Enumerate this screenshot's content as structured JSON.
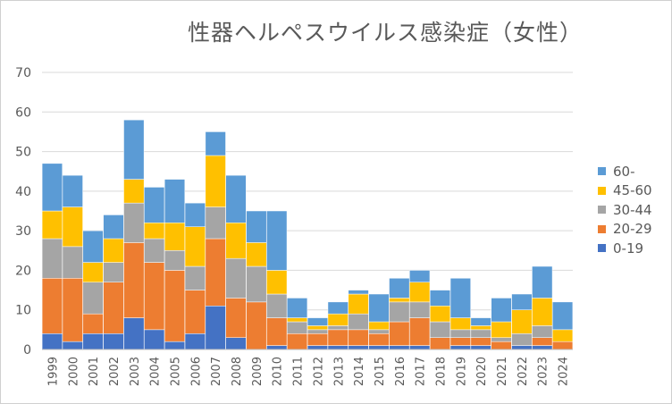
{
  "chart_data": {
    "type": "bar",
    "stacked": true,
    "title": "性器ヘルペスウイルス感染症（女性）",
    "xlabel": "",
    "ylabel": "",
    "ylim": [
      0,
      70
    ],
    "yticks": [
      0,
      10,
      20,
      30,
      40,
      50,
      60,
      70
    ],
    "grid": true,
    "legend_position": "right",
    "categories": [
      "1999",
      "2000",
      "2001",
      "2002",
      "2003",
      "2004",
      "2005",
      "2006",
      "2007",
      "2008",
      "2009",
      "2010",
      "2011",
      "2012",
      "2013",
      "2014",
      "2015",
      "2016",
      "2017",
      "2018",
      "2019",
      "2020",
      "2021",
      "2022",
      "2023",
      "2024"
    ],
    "series": [
      {
        "name": "0-19",
        "color": "#4472c4",
        "values": [
          4,
          2,
          4,
          4,
          8,
          5,
          2,
          4,
          11,
          3,
          0,
          1,
          0,
          1,
          1,
          1,
          1,
          1,
          1,
          0,
          1,
          1,
          0,
          1,
          1,
          0
        ]
      },
      {
        "name": "20-29",
        "color": "#ed7d31",
        "values": [
          14,
          16,
          5,
          13,
          19,
          17,
          18,
          11,
          17,
          10,
          12,
          7,
          4,
          3,
          4,
          4,
          3,
          6,
          7,
          3,
          2,
          2,
          2,
          0,
          2,
          2
        ]
      },
      {
        "name": "30-44",
        "color": "#a5a5a5",
        "values": [
          10,
          8,
          8,
          5,
          10,
          6,
          5,
          6,
          8,
          10,
          9,
          6,
          3,
          1,
          1,
          4,
          1,
          5,
          4,
          4,
          2,
          2,
          1,
          3,
          3,
          0
        ]
      },
      {
        "name": "45-60",
        "color": "#ffc000",
        "values": [
          7,
          10,
          5,
          6,
          6,
          4,
          7,
          10,
          13,
          9,
          6,
          6,
          1,
          1,
          3,
          5,
          2,
          1,
          5,
          4,
          3,
          1,
          4,
          6,
          7,
          3
        ]
      },
      {
        "name": "60-",
        "color": "#5b9bd5",
        "values": [
          12,
          8,
          8,
          6,
          15,
          9,
          11,
          6,
          6,
          12,
          8,
          15,
          5,
          2,
          3,
          1,
          7,
          5,
          3,
          4,
          10,
          2,
          6,
          4,
          8,
          7
        ]
      }
    ],
    "legend_entries": [
      "60-",
      "45-60",
      "30-44",
      "20-29",
      "0-19"
    ]
  }
}
